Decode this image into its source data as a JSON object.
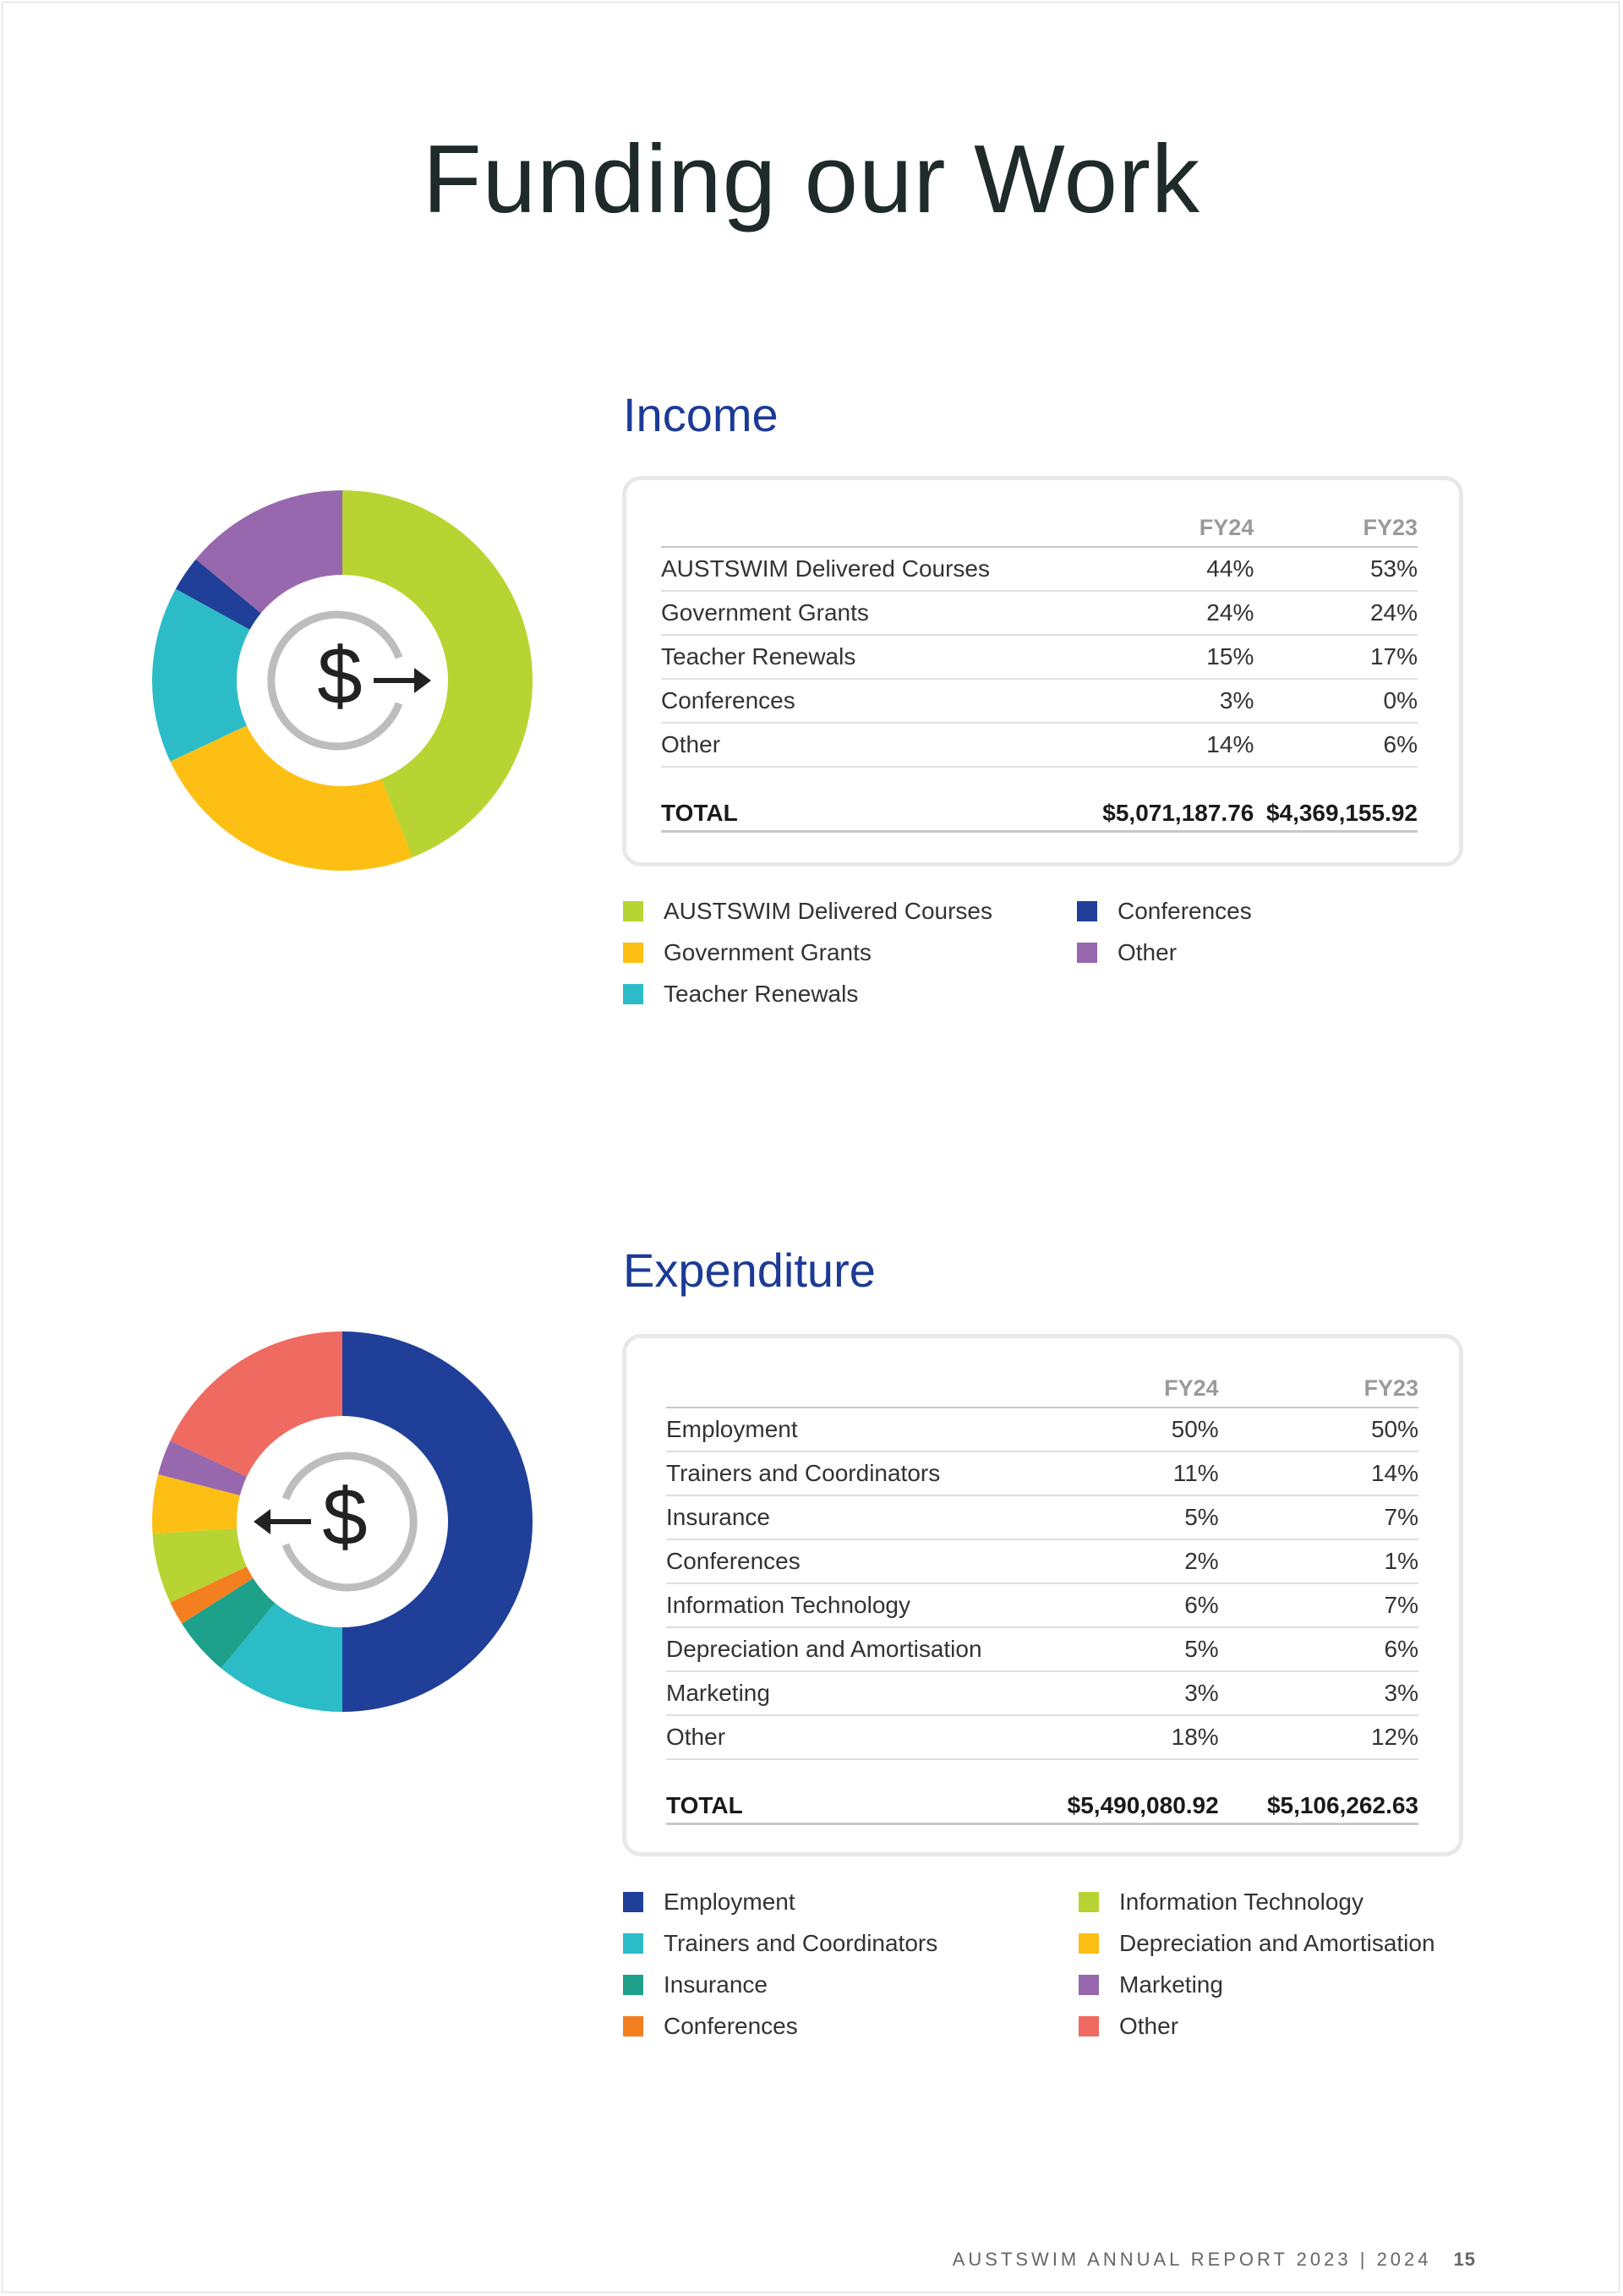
{
  "title": "Funding our Work",
  "colors": {
    "heading": "#1c3a96",
    "lime": "#b8d432",
    "yellow": "#fdbf14",
    "teal": "#2cbcc8",
    "navy": "#1f3f99",
    "purple": "#9768ae",
    "green": "#1ea18a",
    "orange": "#f47f20",
    "coral": "#ef6a60"
  },
  "income": {
    "heading": "Income",
    "icon": "dollar-arrow-out-icon",
    "col_fy24": "FY24",
    "col_fy23": "FY23",
    "rows": [
      {
        "label": "AUSTSWIM Delivered Courses",
        "fy24": "44%",
        "fy23": "53%"
      },
      {
        "label": "Government Grants",
        "fy24": "24%",
        "fy23": "24%"
      },
      {
        "label": "Teacher Renewals",
        "fy24": "15%",
        "fy23": "17%"
      },
      {
        "label": "Conferences",
        "fy24": "3%",
        "fy23": "0%"
      },
      {
        "label": "Other",
        "fy24": "14%",
        "fy23": "6%"
      }
    ],
    "total_label": "TOTAL",
    "total_fy24": "$5,071,187.76",
    "total_fy23": "$4,369,155.92",
    "legend": [
      {
        "label": "AUSTSWIM Delivered Courses",
        "color": "#b8d432"
      },
      {
        "label": "Government Grants",
        "color": "#fdbf14"
      },
      {
        "label": "Teacher Renewals",
        "color": "#2cbcc8"
      },
      {
        "label": "Conferences",
        "color": "#1f3f99"
      },
      {
        "label": "Other",
        "color": "#9768ae"
      }
    ]
  },
  "expenditure": {
    "heading": "Expenditure",
    "icon": "dollar-arrow-in-icon",
    "col_fy24": "FY24",
    "col_fy23": "FY23",
    "rows": [
      {
        "label": "Employment",
        "fy24": "50%",
        "fy23": "50%"
      },
      {
        "label": "Trainers and Coordinators",
        "fy24": "11%",
        "fy23": "14%"
      },
      {
        "label": "Insurance",
        "fy24": "5%",
        "fy23": "7%"
      },
      {
        "label": "Conferences",
        "fy24": "2%",
        "fy23": "1%"
      },
      {
        "label": "Information Technology",
        "fy24": "6%",
        "fy23": "7%"
      },
      {
        "label": "Depreciation and Amortisation",
        "fy24": "5%",
        "fy23": "6%"
      },
      {
        "label": "Marketing",
        "fy24": "3%",
        "fy23": "3%"
      },
      {
        "label": "Other",
        "fy24": "18%",
        "fy23": "12%"
      }
    ],
    "total_label": "TOTAL",
    "total_fy24": "$5,490,080.92",
    "total_fy23": "$5,106,262.63",
    "legend": [
      {
        "label": "Employment",
        "color": "#1f3f99"
      },
      {
        "label": "Trainers and Coordinators",
        "color": "#2cbcc8"
      },
      {
        "label": "Insurance",
        "color": "#1ea18a"
      },
      {
        "label": "Conferences",
        "color": "#f47f20"
      },
      {
        "label": "Information Technology",
        "color": "#b8d432"
      },
      {
        "label": "Depreciation and Amortisation",
        "color": "#fdbf14"
      },
      {
        "label": "Marketing",
        "color": "#9768ae"
      },
      {
        "label": "Other",
        "color": "#ef6a60"
      }
    ]
  },
  "chart_data": [
    {
      "type": "pie",
      "categories": [
        "AUSTSWIM Delivered Courses",
        "Government Grants",
        "Teacher Renewals",
        "Conferences",
        "Other"
      ],
      "values": [
        44,
        24,
        15,
        3,
        14
      ],
      "colors": [
        "#b8d432",
        "#fdbf14",
        "#2cbcc8",
        "#1f3f99",
        "#9768ae"
      ]
    },
    {
      "type": "pie",
      "categories": [
        "Employment",
        "Trainers and Coordinators",
        "Insurance",
        "Conferences",
        "Information Technology",
        "Depreciation and Amortisation",
        "Marketing",
        "Other"
      ],
      "values": [
        50,
        11,
        5,
        2,
        6,
        5,
        3,
        18
      ],
      "colors": [
        "#1f3f99",
        "#2cbcc8",
        "#1ea18a",
        "#f47f20",
        "#b8d432",
        "#fdbf14",
        "#9768ae",
        "#ef6a60"
      ]
    }
  ],
  "footer": {
    "text": "AUSTSWIM ANNUAL REPORT 2023 | 2024",
    "page_number": "15"
  }
}
